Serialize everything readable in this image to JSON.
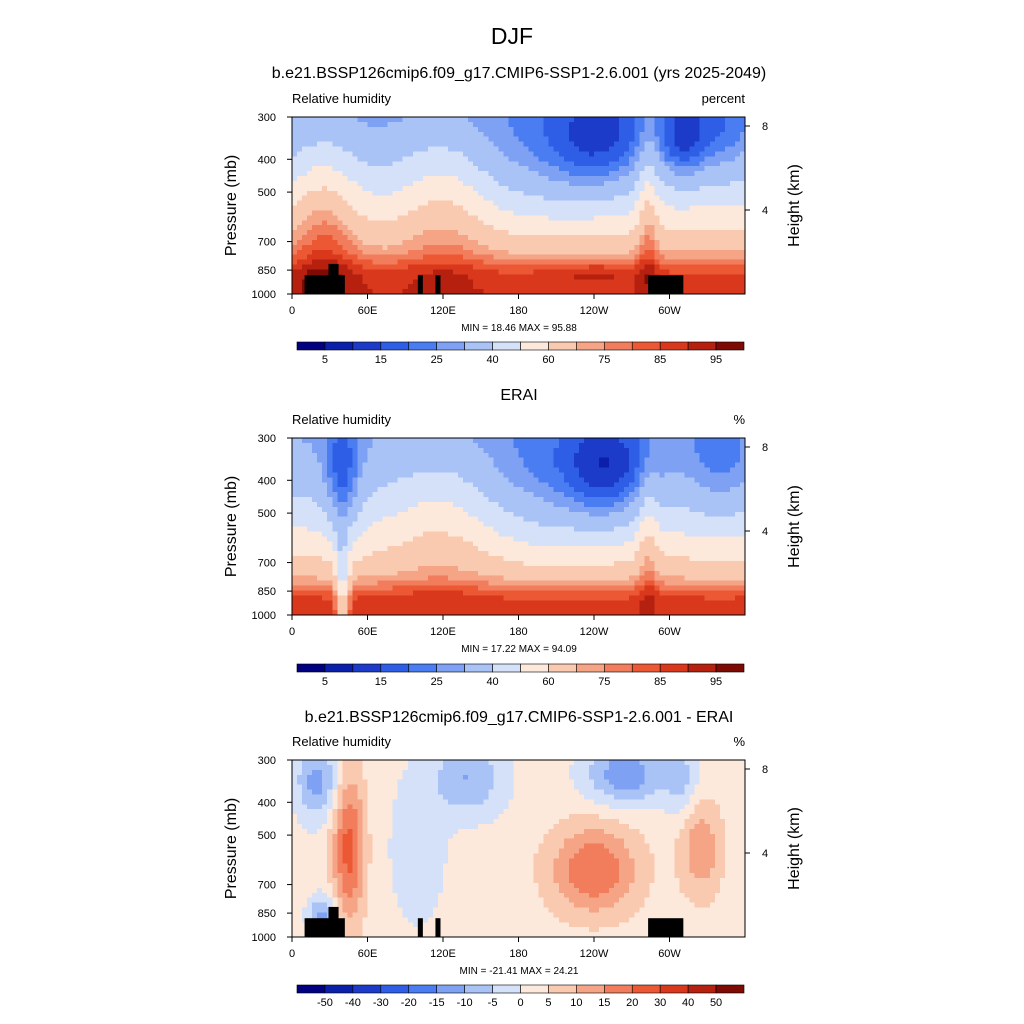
{
  "figure": {
    "title": "DJF"
  },
  "colors": {
    "rh_levels": [
      "#000080",
      "#0a1faa",
      "#1c3bc9",
      "#2f5ee6",
      "#4a7cf2",
      "#7ea1f4",
      "#a9c3f7",
      "#d4e1f9",
      "#fde9dc",
      "#f9c9b0",
      "#f5a486",
      "#f17d5c",
      "#ec5834",
      "#d9381c",
      "#b5200f",
      "#7e0a04"
    ],
    "diff_levels": [
      "#000080",
      "#0a1faa",
      "#1c3bc9",
      "#2f5ee6",
      "#4a7cf2",
      "#7ea1f4",
      "#a9c3f7",
      "#d4e1f9",
      "#fde9dc",
      "#f9c9b0",
      "#f5a486",
      "#f17d5c",
      "#ec5834",
      "#d9381c",
      "#b5200f",
      "#7e0a04"
    ],
    "mask": "#000000"
  },
  "chart_data": [
    {
      "type": "heatmap",
      "title": "b.e21.BSSP126cmip6.f09_g17.CMIP6-SSP1-2.6.001 (yrs 2025-2049)",
      "left_label": "Relative humidity",
      "right_label": "percent",
      "ylabel": "Pressure (mb)",
      "ylabel_right": "Height (km)",
      "x_ticks": [
        "0",
        "60E",
        "120E",
        "180",
        "120W",
        "60W"
      ],
      "x_tick_lon": [
        0,
        60,
        120,
        180,
        240,
        300
      ],
      "xlim": [
        0,
        360
      ],
      "y_ticks": [
        "300",
        "400",
        "500",
        "700",
        "850",
        "1000"
      ],
      "y_tick_p": [
        300,
        400,
        500,
        700,
        850,
        1000
      ],
      "ylim": [
        1000,
        300
      ],
      "y_scale": "log",
      "right_ticks": [
        "8",
        "4"
      ],
      "right_tick_km": [
        8,
        4
      ],
      "stats": "MIN =  18.46  MAX =  95.88",
      "colorbar_labels": [
        "5",
        "15",
        "25",
        "40",
        "60",
        "75",
        "85",
        "95"
      ],
      "colorbar_label_slots": [
        1,
        3,
        5,
        7,
        9,
        11,
        13,
        15
      ],
      "field": "model"
    },
    {
      "type": "heatmap",
      "title": "ERAI",
      "left_label": "Relative humidity",
      "right_label": "%",
      "ylabel": "Pressure (mb)",
      "ylabel_right": "Height (km)",
      "x_ticks": [
        "0",
        "60E",
        "120E",
        "180",
        "120W",
        "60W"
      ],
      "x_tick_lon": [
        0,
        60,
        120,
        180,
        240,
        300
      ],
      "xlim": [
        0,
        360
      ],
      "y_ticks": [
        "300",
        "400",
        "500",
        "700",
        "850",
        "1000"
      ],
      "y_tick_p": [
        300,
        400,
        500,
        700,
        850,
        1000
      ],
      "ylim": [
        1000,
        300
      ],
      "y_scale": "log",
      "right_ticks": [
        "8",
        "4"
      ],
      "right_tick_km": [
        8,
        4
      ],
      "stats": "MIN =  17.22  MAX =  94.09",
      "colorbar_labels": [
        "5",
        "15",
        "25",
        "40",
        "60",
        "75",
        "85",
        "95"
      ],
      "colorbar_label_slots": [
        1,
        3,
        5,
        7,
        9,
        11,
        13,
        15
      ],
      "field": "obs"
    },
    {
      "type": "heatmap",
      "title": "b.e21.BSSP126cmip6.f09_g17.CMIP6-SSP1-2.6.001 - ERAI",
      "left_label": "Relative humidity",
      "right_label": "%",
      "ylabel": "Pressure (mb)",
      "ylabel_right": "Height (km)",
      "x_ticks": [
        "0",
        "60E",
        "120E",
        "180",
        "120W",
        "60W"
      ],
      "x_tick_lon": [
        0,
        60,
        120,
        180,
        240,
        300
      ],
      "xlim": [
        0,
        360
      ],
      "y_ticks": [
        "300",
        "400",
        "500",
        "700",
        "850",
        "1000"
      ],
      "y_tick_p": [
        300,
        400,
        500,
        700,
        850,
        1000
      ],
      "ylim": [
        1000,
        300
      ],
      "y_scale": "log",
      "right_ticks": [
        "8",
        "4"
      ],
      "right_tick_km": [
        8,
        4
      ],
      "stats": "MIN = -21.41  MAX =  24.21",
      "colorbar_labels": [
        "-50",
        "-40",
        "-30",
        "-20",
        "-15",
        "-10",
        "-5",
        "0",
        "5",
        "10",
        "15",
        "20",
        "30",
        "40",
        "50"
      ],
      "colorbar_label_slots": [
        1,
        2,
        3,
        4,
        5,
        6,
        7,
        8,
        9,
        10,
        11,
        12,
        13,
        14,
        15
      ],
      "field": "diff"
    }
  ]
}
